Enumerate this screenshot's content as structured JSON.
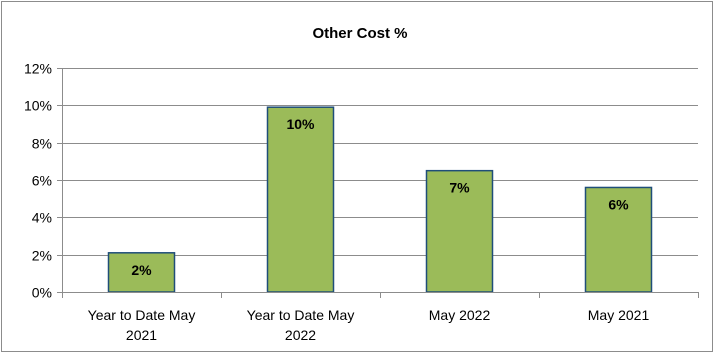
{
  "chart_data": {
    "type": "bar",
    "title": "Other Cost %",
    "xlabel": "",
    "ylabel": "",
    "categories": [
      [
        "Year to Date May",
        "2021"
      ],
      [
        "Year to Date May",
        "2022"
      ],
      [
        "May 2022"
      ],
      [
        "May 2021"
      ]
    ],
    "values": [
      2.1,
      9.9,
      6.5,
      5.6
    ],
    "data_labels": [
      "2%",
      "10%",
      "7%",
      "6%"
    ],
    "ylim": [
      0,
      12
    ],
    "yticks": [
      0,
      2,
      4,
      6,
      8,
      10,
      12
    ],
    "ytick_labels": [
      "0%",
      "2%",
      "4%",
      "6%",
      "8%",
      "10%",
      "12%"
    ],
    "grid": true,
    "legend": "none",
    "colors": {
      "bar_fill": "#9bbb59",
      "bar_stroke": "#1f4e79",
      "grid": "#8c8c8c",
      "axis": "#8c8c8c",
      "border": "#8c8c8c"
    }
  }
}
